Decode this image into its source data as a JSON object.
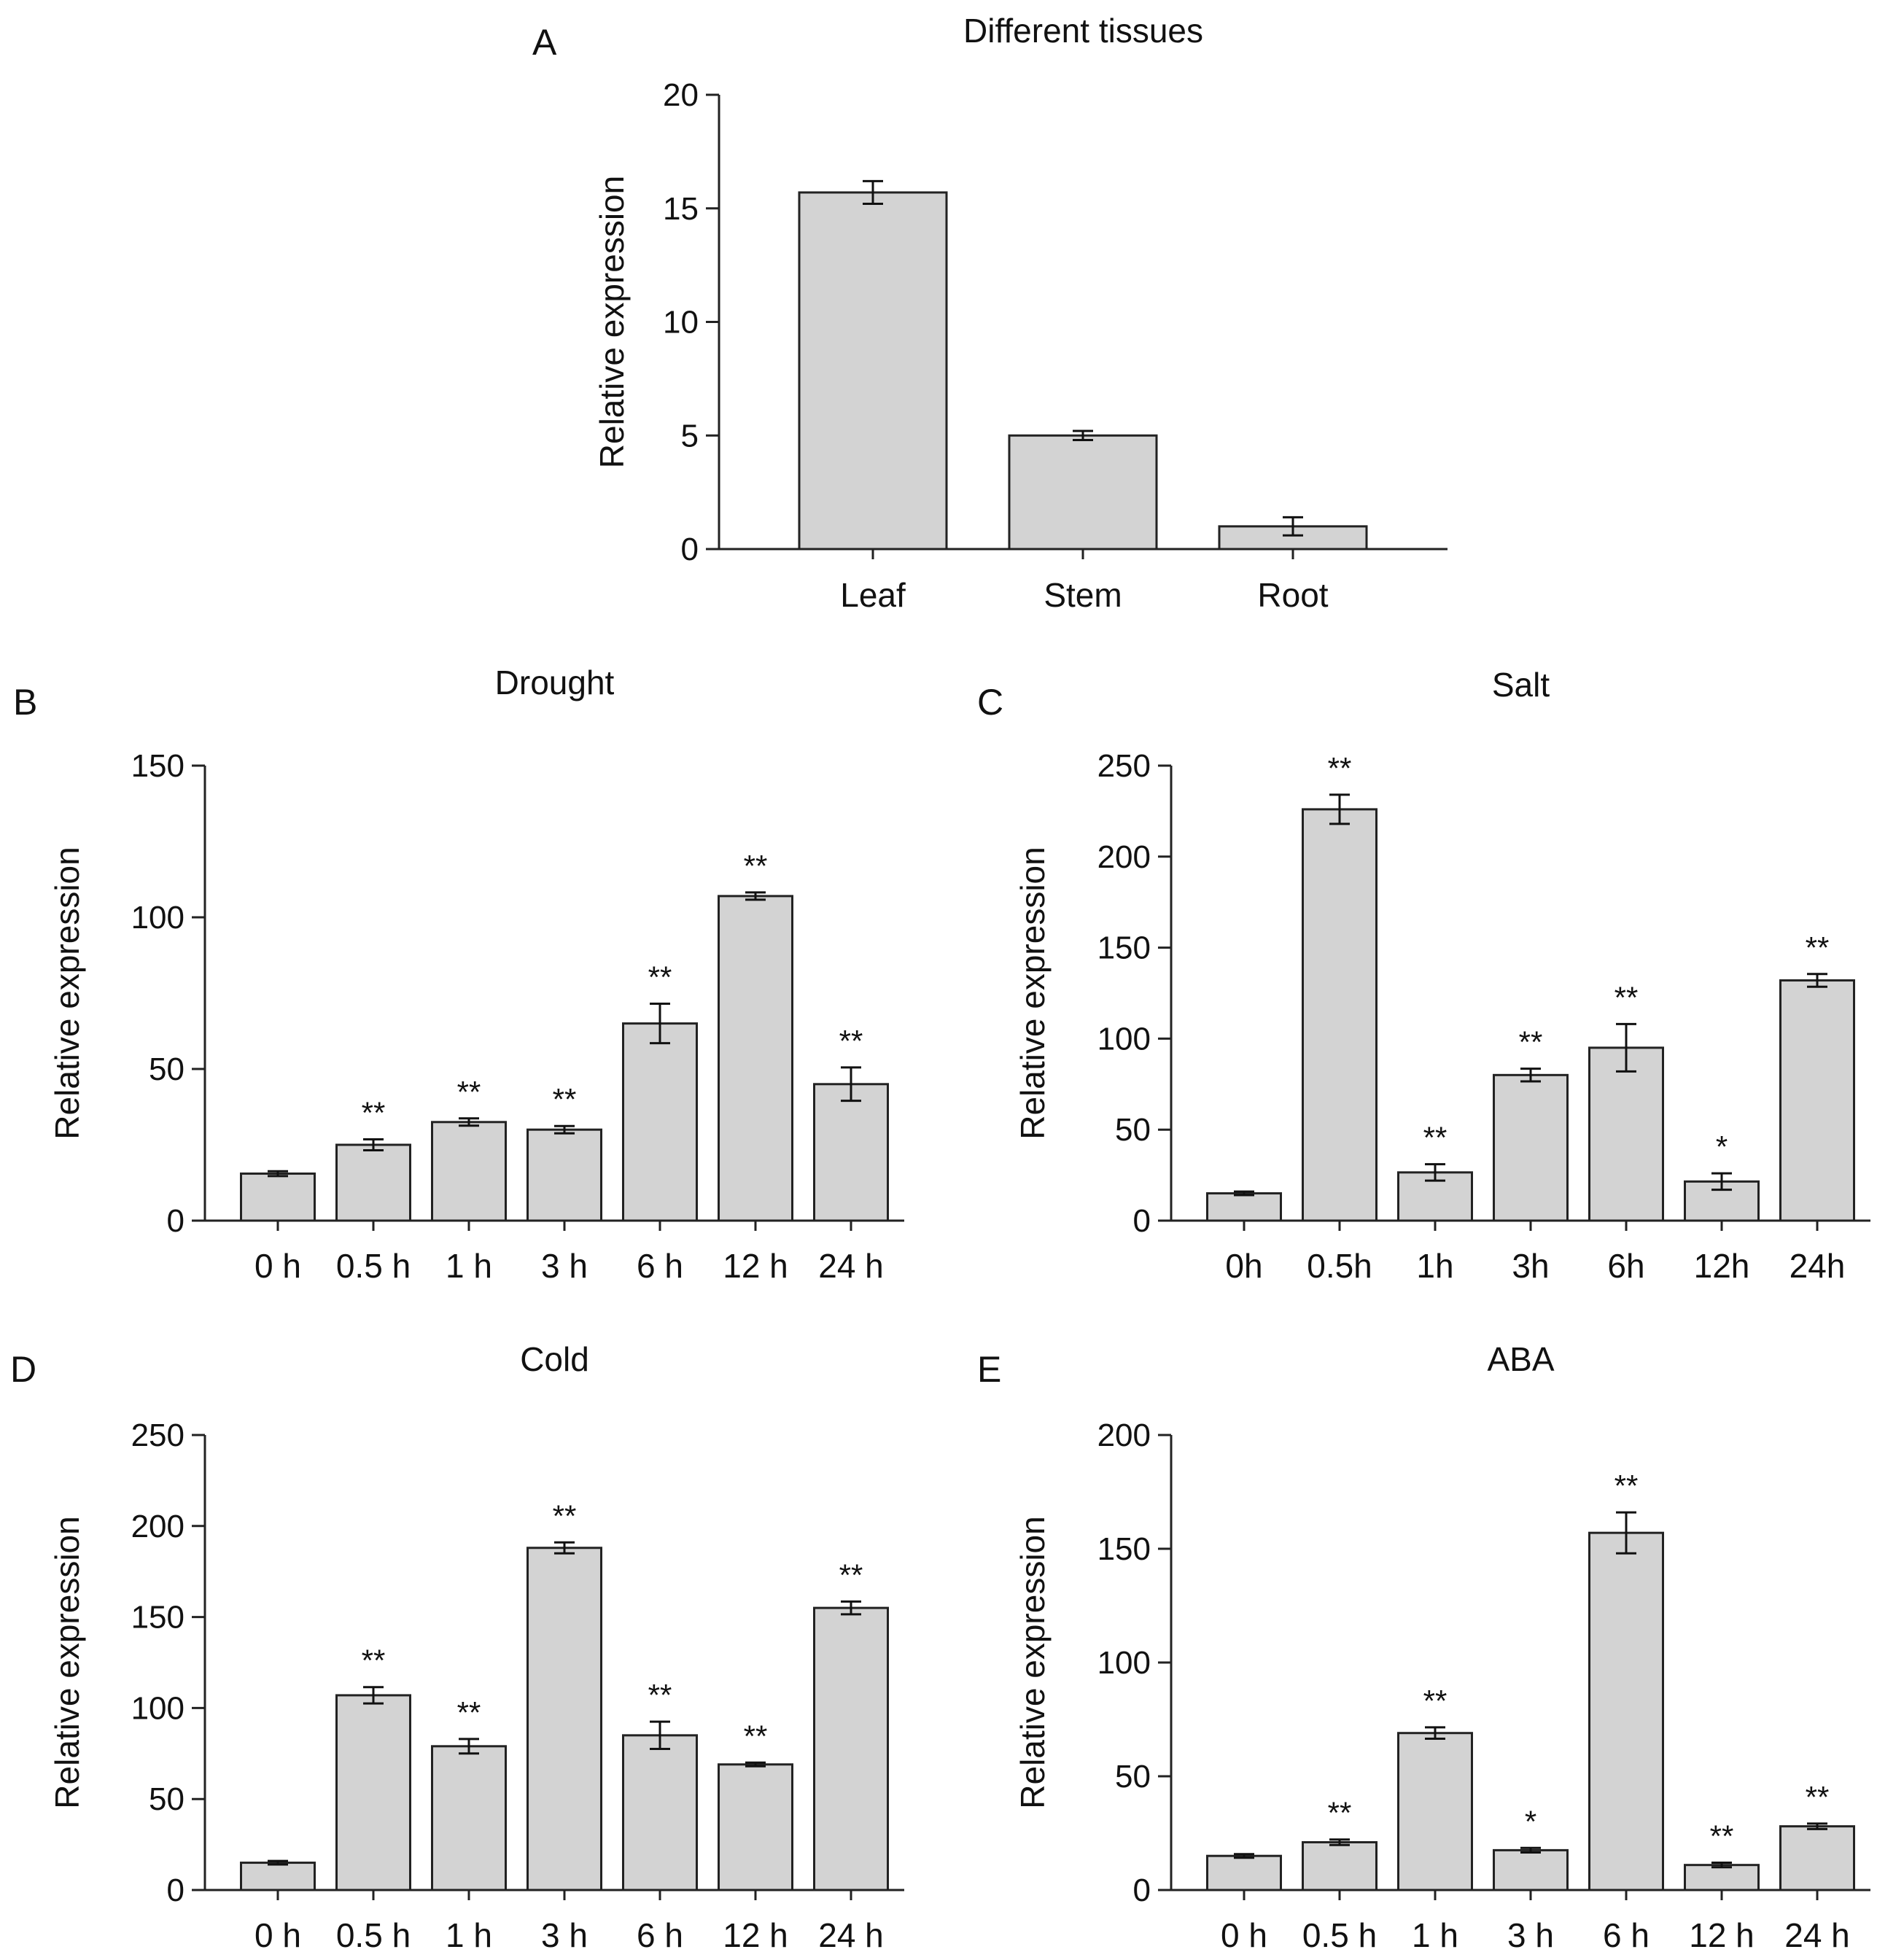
{
  "chart_data": [
    {
      "panel": "A",
      "type": "bar",
      "title": "Different tissues",
      "xlabel": "",
      "ylabel": "Relative expression",
      "ylim": [
        0,
        20
      ],
      "yticks": [
        0,
        5,
        10,
        15,
        20
      ],
      "categories": [
        "Leaf",
        "Stem",
        "Root"
      ],
      "values": [
        15.7,
        5.0,
        1.0
      ],
      "errors": [
        0.5,
        0.2,
        0.4
      ],
      "significance": [
        "",
        "",
        ""
      ],
      "bar_color": "#d3d3d3",
      "grid": false
    },
    {
      "panel": "B",
      "type": "bar",
      "title": "Drought",
      "xlabel": "",
      "ylabel": "Relative expression",
      "ylim": [
        0,
        150
      ],
      "yticks": [
        0,
        50,
        100,
        150
      ],
      "categories": [
        "0 h",
        "0.5 h",
        "1 h",
        "3 h",
        "6 h",
        "12 h",
        "24 h"
      ],
      "values": [
        15.5,
        25,
        32.5,
        30,
        65,
        107,
        45
      ],
      "errors": [
        0.8,
        1.8,
        1.2,
        1.2,
        6.5,
        1.2,
        5.5
      ],
      "significance": [
        "",
        "**",
        "**",
        "**",
        "**",
        "**",
        "**"
      ],
      "bar_color": "#d3d3d3",
      "grid": false
    },
    {
      "panel": "C",
      "type": "bar",
      "title": "Salt",
      "xlabel": "",
      "ylabel": "Relative expression",
      "ylim": [
        0,
        250
      ],
      "yticks": [
        0,
        50,
        100,
        150,
        200,
        250
      ],
      "categories": [
        "0h",
        "0.5h",
        "1h",
        "3h",
        "6h",
        "12h",
        "24h"
      ],
      "values": [
        15,
        226,
        26.5,
        80,
        95,
        21.5,
        132
      ],
      "errors": [
        1,
        8,
        4.5,
        3.5,
        13,
        4.5,
        3.5
      ],
      "significance": [
        "",
        "**",
        "**",
        "**",
        "**",
        "*",
        "**"
      ],
      "bar_color": "#d3d3d3",
      "grid": false
    },
    {
      "panel": "D",
      "type": "bar",
      "title": "Cold",
      "xlabel": "",
      "ylabel": "Relative expression",
      "ylim": [
        0,
        250
      ],
      "yticks": [
        0,
        50,
        100,
        150,
        200,
        250
      ],
      "categories": [
        "0 h",
        "0.5 h",
        "1 h",
        "3 h",
        "6 h",
        "12 h",
        "24 h"
      ],
      "values": [
        15,
        107,
        79,
        188,
        85,
        69,
        155
      ],
      "errors": [
        1,
        4.5,
        4,
        3,
        7.5,
        1,
        3.5
      ],
      "significance": [
        "",
        "**",
        "**",
        "**",
        "**",
        "**",
        "**"
      ],
      "bar_color": "#d3d3d3",
      "grid": false
    },
    {
      "panel": "E",
      "type": "bar",
      "title": "ABA",
      "xlabel": "",
      "ylabel": "Relative expression",
      "ylim": [
        0,
        200
      ],
      "yticks": [
        0,
        50,
        100,
        150,
        200
      ],
      "categories": [
        "0 h",
        "0.5 h",
        "1 h",
        "3 h",
        "6 h",
        "12 h",
        "24 h"
      ],
      "values": [
        15,
        21,
        69,
        17.5,
        157,
        11,
        28
      ],
      "errors": [
        0.8,
        1.2,
        2.5,
        1,
        9,
        1,
        1.2
      ],
      "significance": [
        "",
        "**",
        "**",
        "*",
        "**",
        "**",
        "**"
      ],
      "bar_color": "#d3d3d3",
      "grid": false
    }
  ]
}
